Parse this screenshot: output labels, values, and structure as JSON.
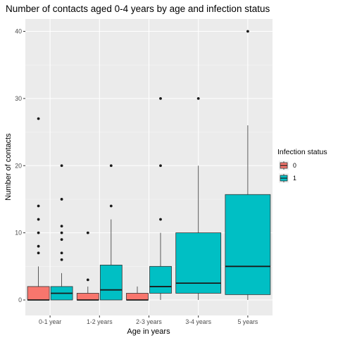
{
  "chart_data": {
    "type": "boxplot",
    "title": "Number of contacts aged 0-4 years by age and infection status",
    "xlabel": "Age in years",
    "ylabel": "Number of contacts",
    "categories": [
      "0-1 year",
      "1-2 years",
      "2-3 years",
      "3-4 years",
      "5 years"
    ],
    "ylim": [
      -2,
      42
    ],
    "y_ticks": [
      0,
      10,
      20,
      30,
      40
    ],
    "grid": true,
    "legend": {
      "title": "Infection status",
      "placement": "right",
      "entries": [
        {
          "label": "0",
          "color": "#F8766D"
        },
        {
          "label": "1",
          "color": "#00BFC4"
        }
      ]
    },
    "series": [
      {
        "name": "0",
        "color": "#F8766D",
        "boxes": [
          {
            "category": "0-1 year",
            "min": 0,
            "q1": 0,
            "median": 0,
            "q3": 2,
            "max": 5,
            "outliers": [
              7,
              8,
              10,
              12,
              14,
              27
            ]
          },
          {
            "category": "1-2 years",
            "min": 0,
            "q1": 0,
            "median": 0,
            "q3": 1,
            "max": 2,
            "outliers": [
              3,
              10
            ]
          },
          {
            "category": "2-3 years",
            "min": 0,
            "q1": 0,
            "median": 0,
            "q3": 1,
            "max": 2,
            "outliers": []
          }
        ]
      },
      {
        "name": "1",
        "color": "#00BFC4",
        "boxes": [
          {
            "category": "0-1 year",
            "min": 0,
            "q1": 0,
            "median": 1,
            "q3": 2,
            "max": 4,
            "outliers": [
              6,
              7,
              9,
              10,
              11,
              15,
              20
            ]
          },
          {
            "category": "1-2 years",
            "min": 0,
            "q1": 0,
            "median": 1.5,
            "q3": 5.2,
            "max": 12,
            "outliers": [
              14,
              20
            ]
          },
          {
            "category": "2-3 years",
            "min": 0,
            "q1": 1,
            "median": 2,
            "q3": 5,
            "max": 10,
            "outliers": [
              12,
              20,
              30
            ]
          },
          {
            "category": "3-4 years",
            "min": 0,
            "q1": 1,
            "median": 2.5,
            "q3": 10,
            "max": 20,
            "outliers": [
              30
            ]
          },
          {
            "category": "5 years",
            "min": 0,
            "q1": 0.8,
            "median": 5,
            "q3": 15.7,
            "max": 26,
            "outliers": [
              40
            ]
          }
        ]
      }
    ]
  }
}
